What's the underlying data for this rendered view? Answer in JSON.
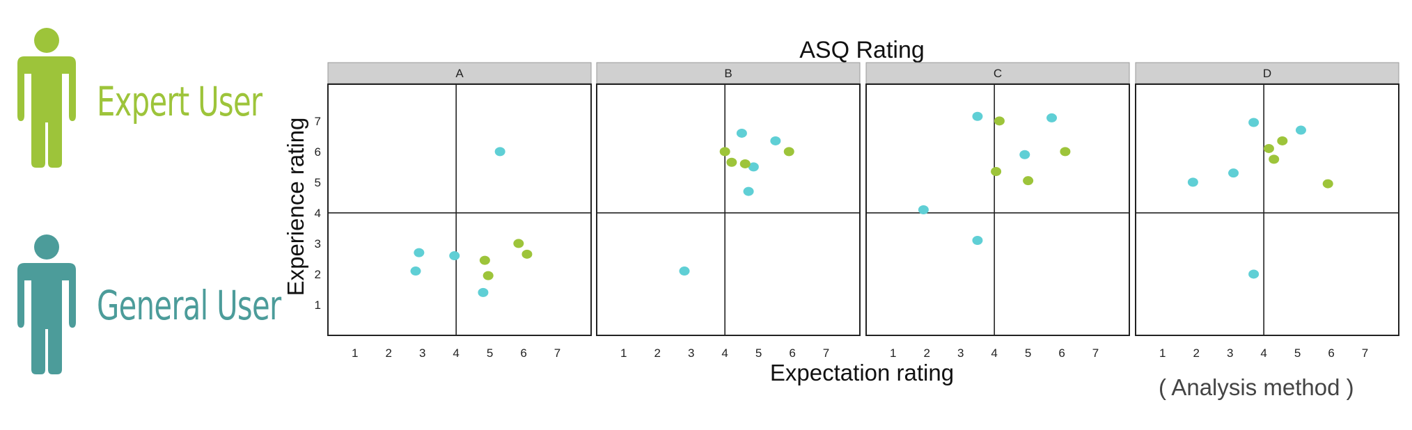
{
  "legend": {
    "items": [
      {
        "label": "Expert User",
        "color": "#9dc43a",
        "icon": "person-icon"
      },
      {
        "label": "General User",
        "color": "#4c9c9a",
        "icon": "person-icon"
      }
    ]
  },
  "caption": "( Analysis method )",
  "chart_data": {
    "type": "scatter",
    "title": "ASQ Rating",
    "xlabel": "Expectation rating",
    "ylabel": "Experience rating",
    "xlim": [
      0.2,
      8.0
    ],
    "ylim": [
      0,
      8.2
    ],
    "xticks": [
      1,
      2,
      3,
      4,
      5,
      6,
      7
    ],
    "yticks": [
      1,
      2,
      3,
      4,
      5,
      6,
      7
    ],
    "reference_lines": {
      "x": 4,
      "y": 4
    },
    "series_colors": {
      "expert": "#9dc43a",
      "general": "#5fcfd5"
    },
    "panels": [
      {
        "name": "A",
        "general": [
          [
            5.3,
            6.0
          ],
          [
            2.9,
            2.7
          ],
          [
            2.8,
            2.1
          ],
          [
            3.95,
            2.6
          ],
          [
            4.8,
            1.4
          ]
        ],
        "expert": [
          [
            4.85,
            2.45
          ],
          [
            4.95,
            1.95
          ],
          [
            5.85,
            3.0
          ],
          [
            6.1,
            2.65
          ]
        ]
      },
      {
        "name": "B",
        "general": [
          [
            4.5,
            6.6
          ],
          [
            5.5,
            6.35
          ],
          [
            4.85,
            5.5
          ],
          [
            4.7,
            4.7
          ],
          [
            2.8,
            2.1
          ]
        ],
        "expert": [
          [
            4.0,
            6.0
          ],
          [
            4.2,
            5.65
          ],
          [
            4.6,
            5.6
          ],
          [
            5.9,
            6.0
          ]
        ]
      },
      {
        "name": "C",
        "general": [
          [
            3.5,
            7.15
          ],
          [
            5.7,
            7.1
          ],
          [
            4.9,
            5.9
          ],
          [
            1.9,
            4.1
          ],
          [
            3.5,
            3.1
          ]
        ],
        "expert": [
          [
            4.15,
            7.0
          ],
          [
            6.1,
            6.0
          ],
          [
            4.05,
            5.35
          ],
          [
            5.0,
            5.05
          ]
        ]
      },
      {
        "name": "D",
        "general": [
          [
            3.7,
            6.95
          ],
          [
            5.1,
            6.7
          ],
          [
            3.1,
            5.3
          ],
          [
            1.9,
            5.0
          ],
          [
            3.7,
            2.0
          ]
        ],
        "expert": [
          [
            4.55,
            6.35
          ],
          [
            4.15,
            6.1
          ],
          [
            4.3,
            5.75
          ],
          [
            5.9,
            4.95
          ]
        ]
      }
    ]
  }
}
